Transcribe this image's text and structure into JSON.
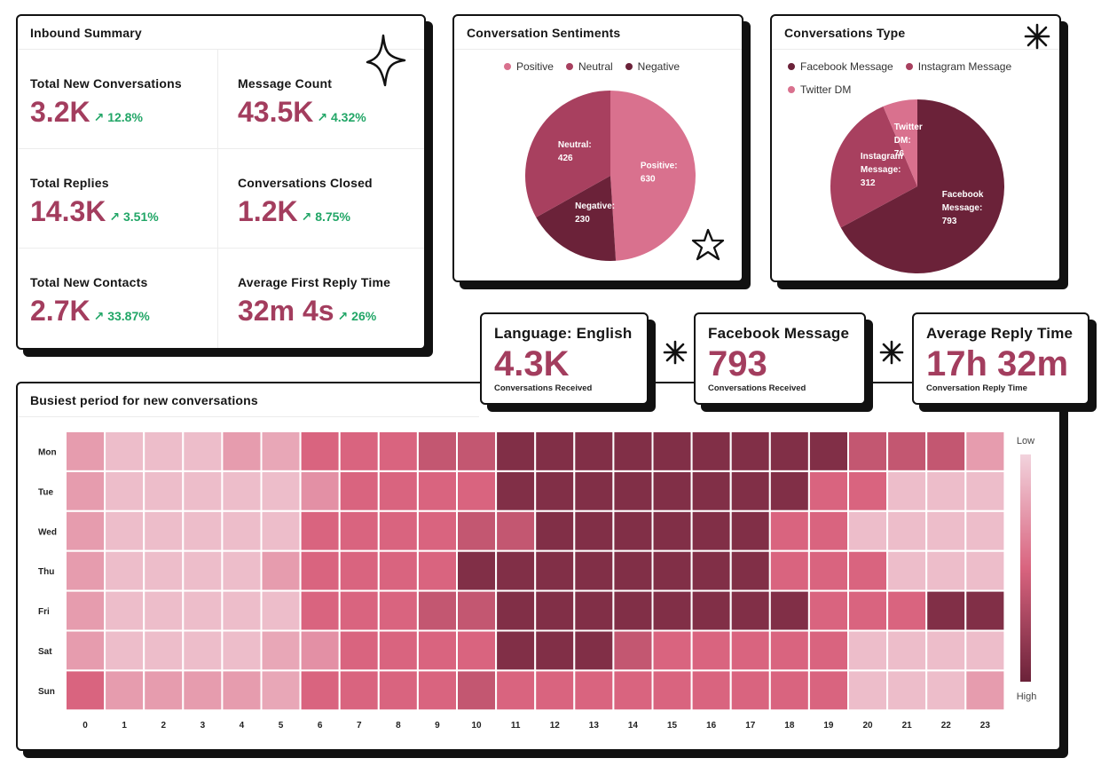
{
  "colors": {
    "accent": "#a33d5e",
    "positive_delta": "#22a667",
    "heat_low": "#f2d3dd",
    "heat_mid": "#d9647f",
    "heat_high": "#6b2239"
  },
  "inbound": {
    "title": "Inbound Summary",
    "kpis": [
      {
        "label": "Total New Conversations",
        "value": "3.2K",
        "delta": "↗ 12.8%"
      },
      {
        "label": "Message Count",
        "value": "43.5K",
        "delta": "↗ 4.32%"
      },
      {
        "label": "Total Replies",
        "value": "14.3K",
        "delta": "↗ 3.51%"
      },
      {
        "label": "Conversations Closed",
        "value": "1.2K",
        "delta": "↗ 8.75%"
      },
      {
        "label": "Total New Contacts",
        "value": "2.7K",
        "delta": "↗ 33.87%"
      },
      {
        "label": "Average First Reply Time",
        "value": "32m 4s",
        "delta": "↗ 26%"
      }
    ]
  },
  "stats": {
    "language": {
      "label": "Language: English",
      "value": "4.3K",
      "sub": "Conversations Received"
    },
    "facebook": {
      "label": "Facebook Message",
      "value": "793",
      "sub": "Conversations Received"
    },
    "reply_time": {
      "label": "Average Reply Time",
      "value": "17h 32m",
      "sub": "Conversation Reply Time"
    }
  },
  "chart_data": [
    {
      "type": "pie",
      "title": "Conversation Sentiments",
      "legend_position": "top",
      "slices": [
        {
          "name": "Positive",
          "value": 630,
          "color": "#d9718e",
          "label_lines": [
            "Positive:",
            "630"
          ]
        },
        {
          "name": "Neutral",
          "value": 426,
          "color": "#a8405f",
          "label_lines": [
            "Neutral:",
            "426"
          ]
        },
        {
          "name": "Negative",
          "value": 230,
          "color": "#6b2239",
          "label_lines": [
            "Negative:",
            "230"
          ]
        }
      ],
      "draw_order": [
        "Positive",
        "Negative",
        "Neutral"
      ]
    },
    {
      "type": "pie",
      "title": "Conversations Type",
      "legend_position": "top",
      "slices": [
        {
          "name": "Facebook Message",
          "value": 793,
          "color": "#6b2239",
          "label_lines": [
            "Facebook",
            "Message:",
            "793"
          ]
        },
        {
          "name": "Instagram Message",
          "value": 312,
          "color": "#a8405f",
          "label_lines": [
            "Instagram",
            "Message:",
            "312"
          ]
        },
        {
          "name": "Twitter DM",
          "value": 76,
          "color": "#d9718e",
          "label_lines": [
            "Twitter",
            "DM:",
            "76"
          ]
        }
      ],
      "draw_order": [
        "Facebook Message",
        "Instagram Message",
        "Twitter DM"
      ]
    },
    {
      "type": "heatmap",
      "title": "Busiest period for new conversations",
      "x": [
        "0",
        "1",
        "2",
        "3",
        "4",
        "5",
        "6",
        "7",
        "8",
        "9",
        "10",
        "11",
        "12",
        "13",
        "14",
        "15",
        "16",
        "17",
        "18",
        "19",
        "20",
        "21",
        "22",
        "23"
      ],
      "y": [
        "Mon",
        "Tue",
        "Wed",
        "Thu",
        "Fri",
        "Sat",
        "Sun"
      ],
      "scale_labels": {
        "low": "Low",
        "high": "High"
      },
      "values_0_to_10": [
        [
          2.5,
          1,
          1,
          1,
          2.5,
          2,
          5,
          5,
          5,
          6,
          6,
          9,
          9,
          9,
          9,
          9,
          9,
          9,
          9,
          9,
          6,
          6,
          6,
          2.5
        ],
        [
          2.5,
          1,
          1,
          1,
          1,
          1,
          3,
          5,
          5,
          5,
          5,
          9,
          9,
          9,
          9,
          9,
          9,
          9,
          9,
          5,
          5,
          1,
          1,
          1
        ],
        [
          2.5,
          1,
          1,
          1,
          1,
          1,
          5,
          5,
          5,
          5,
          6,
          6,
          9,
          9,
          9,
          9,
          9,
          9,
          5,
          5,
          1,
          1,
          1,
          1
        ],
        [
          2.5,
          1,
          1,
          1,
          1,
          2.5,
          5,
          5,
          5,
          5,
          9,
          9,
          9,
          9,
          9,
          9,
          9,
          9,
          5,
          5,
          5,
          1,
          1,
          1
        ],
        [
          2.5,
          1,
          1,
          1,
          1,
          1,
          5,
          5,
          5,
          6,
          6,
          9,
          9,
          9,
          9,
          9,
          9,
          9,
          9,
          5,
          5,
          5,
          9,
          9
        ],
        [
          2.5,
          1,
          1,
          1,
          1,
          2,
          3,
          5,
          5,
          5,
          5,
          9,
          9,
          9,
          6,
          5,
          5,
          5,
          5,
          5,
          1,
          1,
          1,
          1
        ],
        [
          5,
          2.5,
          2.5,
          2.5,
          2.5,
          2,
          5,
          5,
          5,
          5,
          6,
          5,
          5,
          5,
          5,
          5,
          5,
          5,
          5,
          5,
          1,
          1,
          1,
          2.5
        ]
      ]
    }
  ]
}
